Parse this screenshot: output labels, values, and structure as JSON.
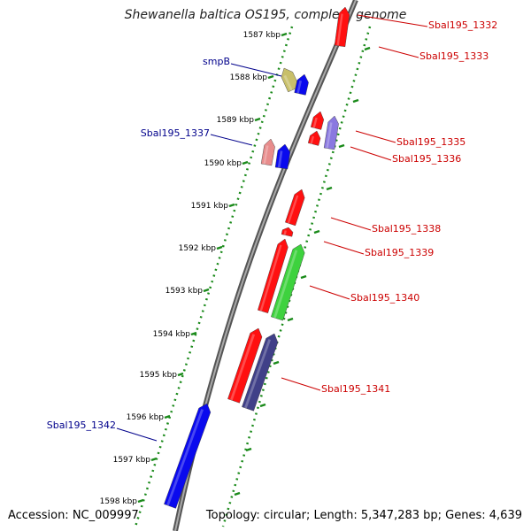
{
  "title": "Shewanella baltica OS195, complete genome",
  "accession_text": "Accession: NC_009997",
  "topology_text": "Topology: circular; Length: 5,347,283 bp; Genes: 4,639",
  "colors": {
    "backbone": "#7a7a7a",
    "tick": "#1a8a1a",
    "label_red": "#cc0000",
    "label_blue": "#00008b",
    "gene_red": "#ff1010",
    "gene_blue": "#0a0aee",
    "gene_green": "#3ed23e",
    "gene_khaki": "#c8bf6a",
    "gene_pink": "#e88c8c",
    "gene_lavender": "#8a78e0",
    "gene_gray": "#6a6a6a",
    "gene_navy": "#404088"
  },
  "kbp_ticks": [
    "1587 kbp",
    "1588 kbp",
    "1589 kbp",
    "1590 kbp",
    "1591 kbp",
    "1592 kbp",
    "1593 kbp",
    "1594 kbp",
    "1595 kbp",
    "1596 kbp",
    "1597 kbp",
    "1598 kbp"
  ],
  "gene_labels": [
    {
      "text": "Sbal195_1332",
      "color": "red"
    },
    {
      "text": "Sbal195_1333",
      "color": "red"
    },
    {
      "text": "smpB",
      "color": "blue"
    },
    {
      "text": "Sbal195_1335",
      "color": "red"
    },
    {
      "text": "Sbal195_1337",
      "color": "blue"
    },
    {
      "text": "Sbal195_1336",
      "color": "red"
    },
    {
      "text": "Sbal195_1338",
      "color": "red"
    },
    {
      "text": "Sbal195_1339",
      "color": "red"
    },
    {
      "text": "Sbal195_1340",
      "color": "red"
    },
    {
      "text": "Sbal195_1341",
      "color": "red"
    },
    {
      "text": "Sbal195_1342",
      "color": "blue"
    }
  ]
}
